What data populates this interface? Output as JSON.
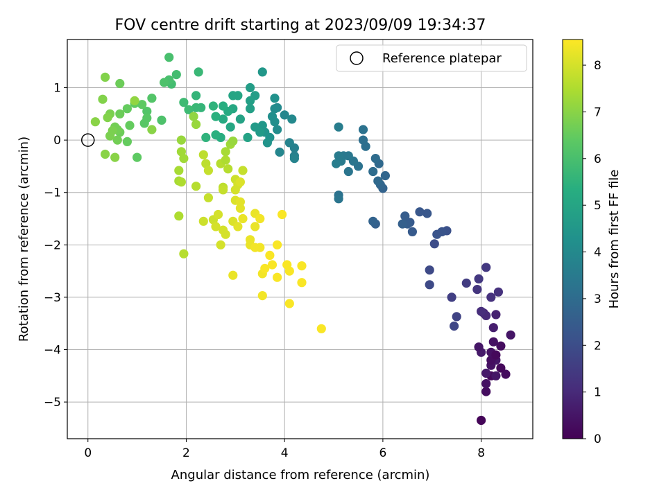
{
  "chart_data": {
    "type": "scatter",
    "title": "FOV centre drift starting at 2023/09/09 19:34:37",
    "xlabel": "Angular distance from reference (arcmin)",
    "ylabel": "Rotation from reference (arcmin)",
    "xlim": [
      -0.42,
      9.05
    ],
    "ylim": [
      -5.7,
      1.92
    ],
    "xticks": [
      0,
      2,
      4,
      6,
      8
    ],
    "yticks": [
      1,
      0,
      -1,
      -2,
      -3,
      -4,
      -5
    ],
    "grid": true,
    "legend": {
      "label": "Reference platepar",
      "location": "top-right"
    },
    "reference_point": {
      "x": 0,
      "y": 0
    },
    "colorbar": {
      "label": "Hours from first FF file",
      "colormap": "viridis",
      "range": [
        0,
        8.55
      ],
      "ticks": [
        0,
        1,
        2,
        3,
        4,
        5,
        6,
        7,
        8
      ]
    },
    "points": [
      [
        8.0,
        -5.35,
        0.1
      ],
      [
        8.1,
        -4.8,
        0.3
      ],
      [
        8.1,
        -4.65,
        0.4
      ],
      [
        8.2,
        -4.5,
        0.2
      ],
      [
        8.3,
        -4.5,
        0.5
      ],
      [
        8.5,
        -4.47,
        0.3
      ],
      [
        8.1,
        -4.45,
        0.6
      ],
      [
        8.2,
        -4.3,
        0.4
      ],
      [
        8.4,
        -4.35,
        0.2
      ],
      [
        8.3,
        -4.2,
        0.5
      ],
      [
        8.2,
        -4.2,
        0.3
      ],
      [
        8.0,
        -4.05,
        0.6
      ],
      [
        8.2,
        -4.05,
        0.4
      ],
      [
        8.3,
        -4.1,
        0.2
      ],
      [
        7.95,
        -3.95,
        0.5
      ],
      [
        8.4,
        -3.93,
        0.3
      ],
      [
        8.25,
        -3.85,
        0.4
      ],
      [
        8.6,
        -3.72,
        0.5
      ],
      [
        8.25,
        -3.58,
        0.7
      ],
      [
        8.05,
        -3.3,
        0.9
      ],
      [
        8.1,
        -3.35,
        1.0
      ],
      [
        8.3,
        -3.33,
        0.8
      ],
      [
        8.0,
        -3.27,
        1.1
      ],
      [
        8.2,
        -3.0,
        1.2
      ],
      [
        8.35,
        -2.9,
        1.2
      ],
      [
        7.92,
        -2.85,
        1.3
      ],
      [
        7.95,
        -2.65,
        1.4
      ],
      [
        7.7,
        -2.73,
        1.5
      ],
      [
        8.1,
        -2.43,
        1.4
      ],
      [
        7.4,
        -3.0,
        1.6
      ],
      [
        7.5,
        -3.37,
        1.7
      ],
      [
        7.45,
        -3.55,
        1.8
      ],
      [
        6.95,
        -2.48,
        1.9
      ],
      [
        6.95,
        -2.76,
        1.9
      ],
      [
        7.05,
        -1.98,
        2.0
      ],
      [
        7.3,
        -1.73,
        2.1
      ],
      [
        7.2,
        -1.75,
        2.2
      ],
      [
        7.1,
        -1.8,
        2.2
      ],
      [
        6.9,
        -1.4,
        2.3
      ],
      [
        6.75,
        -1.37,
        2.3
      ],
      [
        6.6,
        -1.75,
        2.4
      ],
      [
        6.55,
        -1.57,
        2.4
      ],
      [
        6.5,
        -1.6,
        2.5
      ],
      [
        6.45,
        -1.45,
        2.5
      ],
      [
        6.4,
        -1.6,
        2.6
      ],
      [
        5.85,
        -1.6,
        2.6
      ],
      [
        5.8,
        -1.55,
        2.7
      ],
      [
        6.0,
        -0.92,
        2.7
      ],
      [
        6.05,
        -0.68,
        2.8
      ],
      [
        5.95,
        -0.85,
        2.8
      ],
      [
        5.9,
        -0.78,
        2.9
      ],
      [
        5.92,
        -0.45,
        2.9
      ],
      [
        5.85,
        -0.35,
        3.0
      ],
      [
        5.8,
        -0.6,
        3.0
      ],
      [
        5.65,
        -0.12,
        3.1
      ],
      [
        5.6,
        0.0,
        3.1
      ],
      [
        5.6,
        0.2,
        3.2
      ],
      [
        5.5,
        -0.5,
        3.2
      ],
      [
        5.4,
        -0.4,
        3.3
      ],
      [
        5.3,
        -0.6,
        3.3
      ],
      [
        5.3,
        -0.3,
        3.4
      ],
      [
        5.2,
        -0.3,
        3.4
      ],
      [
        5.15,
        -0.4,
        3.5
      ],
      [
        5.1,
        -0.3,
        3.5
      ],
      [
        5.05,
        -0.45,
        3.6
      ],
      [
        5.1,
        0.25,
        3.6
      ],
      [
        5.1,
        -1.05,
        3.2
      ],
      [
        5.1,
        -1.12,
        3.3
      ],
      [
        4.2,
        -0.15,
        3.7
      ],
      [
        4.2,
        -0.3,
        3.7
      ],
      [
        4.2,
        -0.35,
        3.8
      ],
      [
        4.1,
        -0.05,
        3.8
      ],
      [
        4.0,
        0.48,
        3.9
      ],
      [
        3.9,
        -0.23,
        3.9
      ],
      [
        4.15,
        0.4,
        4.0
      ],
      [
        3.85,
        0.62,
        4.0
      ],
      [
        3.85,
        0.2,
        4.1
      ],
      [
        3.8,
        0.6,
        4.1
      ],
      [
        3.8,
        0.35,
        4.2
      ],
      [
        3.75,
        0.45,
        4.2
      ],
      [
        3.8,
        0.8,
        4.3
      ],
      [
        3.7,
        0.05,
        4.3
      ],
      [
        3.65,
        -0.05,
        4.4
      ],
      [
        3.6,
        0.15,
        4.4
      ],
      [
        3.55,
        0.28,
        4.5
      ],
      [
        3.55,
        1.3,
        4.5
      ],
      [
        3.5,
        0.15,
        4.6
      ],
      [
        3.4,
        0.25,
        4.6
      ],
      [
        3.4,
        0.85,
        4.7
      ],
      [
        3.3,
        1.0,
        4.7
      ],
      [
        3.3,
        0.75,
        4.8
      ],
      [
        3.3,
        0.6,
        4.8
      ],
      [
        3.25,
        0.05,
        4.9
      ],
      [
        3.1,
        0.4,
        4.9
      ],
      [
        3.05,
        0.85,
        5.0
      ],
      [
        2.95,
        0.85,
        5.0
      ],
      [
        2.95,
        0.6,
        5.1
      ],
      [
        2.9,
        0.25,
        5.1
      ],
      [
        2.85,
        0.55,
        5.2
      ],
      [
        2.75,
        0.4,
        5.2
      ],
      [
        2.75,
        0.65,
        5.3
      ],
      [
        2.7,
        0.05,
        5.3
      ],
      [
        2.6,
        0.1,
        5.4
      ],
      [
        2.6,
        0.45,
        5.4
      ],
      [
        2.55,
        0.65,
        5.5
      ],
      [
        2.4,
        0.05,
        5.5
      ],
      [
        2.3,
        0.62,
        5.6
      ],
      [
        2.2,
        0.85,
        5.6
      ],
      [
        2.25,
        1.3,
        5.7
      ],
      [
        2.2,
        0.62,
        5.7
      ],
      [
        2.05,
        0.58,
        5.8
      ],
      [
        1.95,
        0.72,
        5.8
      ],
      [
        1.8,
        1.25,
        5.9
      ],
      [
        1.7,
        1.07,
        5.9
      ],
      [
        1.65,
        1.15,
        6.0
      ],
      [
        1.65,
        1.58,
        6.0
      ],
      [
        1.55,
        1.1,
        6.1
      ],
      [
        1.5,
        0.38,
        6.1
      ],
      [
        1.3,
        0.8,
        6.2
      ],
      [
        1.2,
        0.55,
        6.2
      ],
      [
        1.2,
        0.42,
        6.3
      ],
      [
        1.15,
        0.32,
        6.3
      ],
      [
        1.1,
        0.68,
        6.4
      ],
      [
        0.95,
        0.7,
        6.4
      ],
      [
        1.0,
        -0.33,
        6.4
      ],
      [
        0.85,
        0.28,
        6.5
      ],
      [
        0.8,
        0.6,
        6.5
      ],
      [
        0.8,
        -0.03,
        6.5
      ],
      [
        0.65,
        0.15,
        6.6
      ],
      [
        0.65,
        0.5,
        6.6
      ],
      [
        0.65,
        1.08,
        6.6
      ],
      [
        0.6,
        0.2,
        6.7
      ],
      [
        0.6,
        0.0,
        6.7
      ],
      [
        0.55,
        0.25,
        6.7
      ],
      [
        0.5,
        0.18,
        6.8
      ],
      [
        0.45,
        0.08,
        6.8
      ],
      [
        0.45,
        0.5,
        6.8
      ],
      [
        0.4,
        0.43,
        6.9
      ],
      [
        0.35,
        1.2,
        6.9
      ],
      [
        0.3,
        0.78,
        6.9
      ],
      [
        0.35,
        -0.27,
        7.0
      ],
      [
        0.55,
        -0.33,
        7.0
      ],
      [
        0.15,
        0.35,
        7.0
      ],
      [
        1.3,
        0.2,
        7.0
      ],
      [
        0.95,
        0.75,
        7.1
      ],
      [
        2.15,
        0.45,
        7.1
      ],
      [
        2.2,
        0.3,
        7.2
      ],
      [
        1.9,
        0.0,
        7.2
      ],
      [
        1.9,
        -0.22,
        7.3
      ],
      [
        1.95,
        -0.35,
        7.3
      ],
      [
        1.85,
        -0.58,
        7.4
      ],
      [
        1.85,
        -0.78,
        7.4
      ],
      [
        1.9,
        -0.8,
        7.5
      ],
      [
        1.85,
        -1.45,
        7.5
      ],
      [
        1.95,
        -2.17,
        7.6
      ],
      [
        2.2,
        -0.88,
        7.6
      ],
      [
        2.35,
        -0.28,
        7.7
      ],
      [
        2.4,
        -0.45,
        7.7
      ],
      [
        2.45,
        -0.58,
        7.8
      ],
      [
        2.45,
        -1.1,
        7.8
      ],
      [
        2.35,
        -1.55,
        7.9
      ],
      [
        2.55,
        -1.52,
        7.9
      ],
      [
        2.6,
        -1.65,
        8.0
      ],
      [
        2.65,
        -1.42,
        8.0
      ],
      [
        2.7,
        -2.0,
        8.0
      ],
      [
        2.75,
        -1.72,
        8.0
      ],
      [
        2.8,
        -1.8,
        8.0
      ],
      [
        2.7,
        -0.45,
        7.6
      ],
      [
        2.75,
        -0.9,
        7.7
      ],
      [
        2.75,
        -0.95,
        7.8
      ],
      [
        2.8,
        -0.38,
        7.5
      ],
      [
        2.8,
        -0.22,
        7.4
      ],
      [
        2.85,
        -0.55,
        7.6
      ],
      [
        2.9,
        -0.08,
        7.3
      ],
      [
        2.95,
        -0.02,
        7.2
      ],
      [
        2.95,
        -1.55,
        8.1
      ],
      [
        3.0,
        -0.75,
        7.9
      ],
      [
        3.0,
        -0.95,
        8.0
      ],
      [
        3.0,
        -1.15,
        8.1
      ],
      [
        3.05,
        -1.65,
        8.2
      ],
      [
        3.05,
        -0.85,
        8.0
      ],
      [
        3.1,
        -1.3,
        8.2
      ],
      [
        3.1,
        -0.8,
        8.1
      ],
      [
        3.15,
        -1.5,
        8.3
      ],
      [
        3.15,
        -0.58,
        7.8
      ],
      [
        3.1,
        -1.18,
        8.2
      ],
      [
        3.3,
        -1.9,
        8.3
      ],
      [
        3.3,
        -2.0,
        8.3
      ],
      [
        3.4,
        -1.4,
        8.3
      ],
      [
        3.4,
        -2.05,
        8.4
      ],
      [
        3.5,
        -1.5,
        8.4
      ],
      [
        3.5,
        -2.05,
        8.4
      ],
      [
        3.4,
        -1.65,
        8.3
      ],
      [
        2.95,
        -2.58,
        8.3
      ],
      [
        3.55,
        -2.55,
        8.4
      ],
      [
        3.55,
        -2.97,
        8.4
      ],
      [
        3.6,
        -2.45,
        8.5
      ],
      [
        3.7,
        -2.2,
        8.5
      ],
      [
        3.75,
        -2.38,
        8.5
      ],
      [
        3.85,
        -2.0,
        8.5
      ],
      [
        3.85,
        -2.62,
        8.5
      ],
      [
        3.95,
        -1.42,
        8.5
      ],
      [
        4.05,
        -2.38,
        8.5
      ],
      [
        4.1,
        -2.5,
        8.5
      ],
      [
        4.1,
        -3.12,
        8.5
      ],
      [
        4.35,
        -2.4,
        8.5
      ],
      [
        4.35,
        -2.72,
        8.5
      ],
      [
        4.75,
        -3.6,
        8.5
      ]
    ]
  }
}
